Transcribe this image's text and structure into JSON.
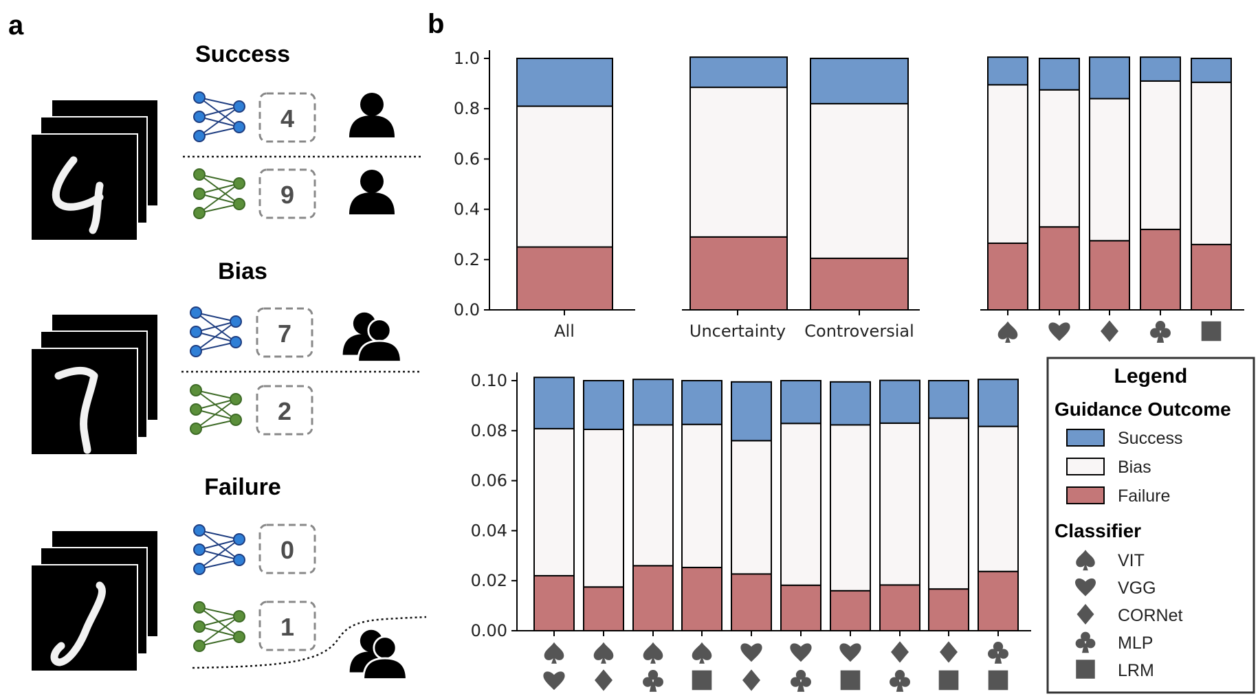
{
  "panels": {
    "a_label": "a",
    "b_label": "b"
  },
  "examples": [
    {
      "title": "Success",
      "top_digit": "4",
      "bottom_digit": "9",
      "case": "success"
    },
    {
      "title": "Bias",
      "top_digit": "7",
      "bottom_digit": "2",
      "case": "bias"
    },
    {
      "title": "Failure",
      "top_digit": "0",
      "bottom_digit": "1",
      "case": "failure"
    }
  ],
  "colors": {
    "success": "#6f98cb",
    "bias": "#f9f6f6",
    "failure": "#c47778",
    "net_blue": "#2f7fd6",
    "net_blue_edge": "#1e3d80",
    "net_green": "#5b8f3a",
    "net_green_edge": "#3d6a26",
    "icon_gray": "#555555"
  },
  "chart_data": [
    {
      "type": "bar",
      "stacked": true,
      "categories": [
        "All"
      ],
      "series": [
        {
          "name": "Failure",
          "values": [
            0.25
          ]
        },
        {
          "name": "Bias",
          "values": [
            0.56
          ]
        },
        {
          "name": "Success",
          "values": [
            0.19
          ]
        }
      ],
      "ylim": [
        0,
        1.0
      ],
      "yticks": [
        "0.0",
        "0.2",
        "0.4",
        "0.6",
        "0.8",
        "1.0"
      ]
    },
    {
      "type": "bar",
      "stacked": true,
      "categories": [
        "Uncertainty",
        "Controversial"
      ],
      "series": [
        {
          "name": "Failure",
          "values": [
            0.29,
            0.205
          ]
        },
        {
          "name": "Bias",
          "values": [
            0.595,
            0.615
          ]
        },
        {
          "name": "Success",
          "values": [
            0.12,
            0.18
          ]
        }
      ],
      "ylim": [
        0,
        1.0
      ]
    },
    {
      "type": "bar",
      "stacked": true,
      "categories": [
        "VIT",
        "VGG",
        "CORNet",
        "MLP",
        "LRM"
      ],
      "category_icons": [
        [
          "spade"
        ],
        [
          "heart"
        ],
        [
          "diamond"
        ],
        [
          "club"
        ],
        [
          "square"
        ]
      ],
      "series": [
        {
          "name": "Failure",
          "values": [
            0.265,
            0.33,
            0.275,
            0.32,
            0.26
          ]
        },
        {
          "name": "Bias",
          "values": [
            0.63,
            0.545,
            0.565,
            0.59,
            0.645
          ]
        },
        {
          "name": "Success",
          "values": [
            0.11,
            0.125,
            0.165,
            0.095,
            0.095
          ]
        }
      ],
      "ylim": [
        0,
        1.0
      ]
    },
    {
      "type": "bar",
      "stacked": true,
      "categories": [
        "VIT-VGG",
        "VIT-CORNet",
        "VIT-MLP",
        "VIT-LRM",
        "VGG-CORNet",
        "VGG-MLP",
        "VGG-LRM",
        "CORNet-MLP",
        "CORNet-LRM",
        "MLP-LRM"
      ],
      "category_icons": [
        [
          "spade",
          "heart"
        ],
        [
          "spade",
          "diamond"
        ],
        [
          "spade",
          "club"
        ],
        [
          "spade",
          "square"
        ],
        [
          "heart",
          "diamond"
        ],
        [
          "heart",
          "club"
        ],
        [
          "heart",
          "square"
        ],
        [
          "diamond",
          "club"
        ],
        [
          "diamond",
          "square"
        ],
        [
          "club",
          "square"
        ]
      ],
      "series": [
        {
          "name": "Failure",
          "values": [
            0.022,
            0.0175,
            0.026,
            0.0253,
            0.0227,
            0.0182,
            0.016,
            0.0183,
            0.0167,
            0.0237
          ]
        },
        {
          "name": "Bias",
          "values": [
            0.0588,
            0.063,
            0.0563,
            0.0572,
            0.0533,
            0.0647,
            0.0663,
            0.0647,
            0.0683,
            0.058
          ]
        },
        {
          "name": "Success",
          "values": [
            0.0205,
            0.0195,
            0.0182,
            0.0175,
            0.0235,
            0.0171,
            0.0172,
            0.0171,
            0.015,
            0.0188
          ]
        }
      ],
      "ylim": [
        0,
        0.1
      ],
      "yticks": [
        "0.00",
        "0.02",
        "0.04",
        "0.06",
        "0.08",
        "0.10"
      ]
    }
  ],
  "legend": {
    "title": "Legend",
    "outcome_title": "Guidance Outcome",
    "outcomes": [
      {
        "label": "Success",
        "key": "success"
      },
      {
        "label": "Bias",
        "key": "bias"
      },
      {
        "label": "Failure",
        "key": "failure"
      }
    ],
    "classifier_title": "Classifier",
    "classifiers": [
      {
        "label": "VIT",
        "icon": "spade"
      },
      {
        "label": "VGG",
        "icon": "heart"
      },
      {
        "label": "CORNet",
        "icon": "diamond"
      },
      {
        "label": "MLP",
        "icon": "club"
      },
      {
        "label": "LRM",
        "icon": "square"
      }
    ]
  }
}
